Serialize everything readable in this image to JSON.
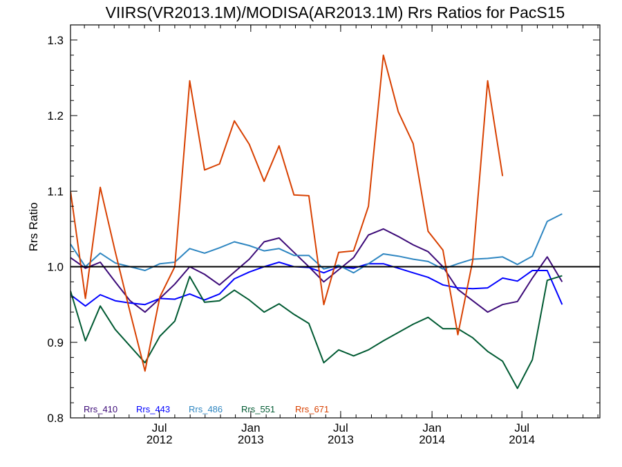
{
  "chart_data": {
    "type": "line",
    "title": "VIIRS(VR2013.1M)/MODISA(AR2013.1M)  Rrs Ratios for PacS15",
    "xlabel": "",
    "ylabel": "Rrs Ratio",
    "x_range": [
      "2012-01-04",
      "2014-12-05"
    ],
    "ylim": [
      0.8,
      1.32
    ],
    "y_ticks": [
      0.8,
      0.9,
      1.0,
      1.1,
      1.2,
      1.3
    ],
    "y_tick_labels": [
      "0.8",
      "0.9",
      "1.0",
      "1.1",
      "1.2",
      "1.3"
    ],
    "x_ticks": [
      {
        "date": "2012-07-01",
        "line1": "Jul",
        "line2": "2012"
      },
      {
        "date": "2013-01-01",
        "line1": "Jan",
        "line2": "2013"
      },
      {
        "date": "2013-07-01",
        "line1": "Jul",
        "line2": "2013"
      },
      {
        "date": "2014-01-01",
        "line1": "Jan",
        "line2": "2014"
      },
      {
        "date": "2014-07-01",
        "line1": "Jul",
        "line2": "2014"
      }
    ],
    "reference_line": 1.0,
    "grid": false,
    "legend_position": "bottom-left",
    "series": [
      {
        "name": "Rrs_410",
        "color": "#3c0a78",
        "points": [
          [
            "2012-01-04",
            1.012
          ],
          [
            "2012-02-03",
            0.998
          ],
          [
            "2012-03-04",
            1.006
          ],
          [
            "2012-04-03",
            0.98
          ],
          [
            "2012-05-03",
            0.955
          ],
          [
            "2012-06-02",
            0.94
          ],
          [
            "2012-07-02",
            0.958
          ],
          [
            "2012-08-01",
            0.977
          ],
          [
            "2012-08-31",
            1.0
          ],
          [
            "2012-09-30",
            0.99
          ],
          [
            "2012-10-30",
            0.976
          ],
          [
            "2012-11-29",
            0.993
          ],
          [
            "2012-12-29",
            1.01
          ],
          [
            "2013-01-28",
            1.033
          ],
          [
            "2013-02-27",
            1.038
          ],
          [
            "2013-03-29",
            1.019
          ],
          [
            "2013-04-28",
            1.0
          ],
          [
            "2013-05-28",
            0.98
          ],
          [
            "2013-06-27",
            0.996
          ],
          [
            "2013-07-27",
            1.012
          ],
          [
            "2013-08-26",
            1.042
          ],
          [
            "2013-09-25",
            1.05
          ],
          [
            "2013-10-25",
            1.04
          ],
          [
            "2013-11-24",
            1.029
          ],
          [
            "2013-12-24",
            1.02
          ],
          [
            "2014-01-23",
            1.0
          ],
          [
            "2014-02-22",
            0.97
          ],
          [
            "2014-03-24",
            0.955
          ],
          [
            "2014-04-23",
            0.94
          ],
          [
            "2014-05-23",
            0.95
          ],
          [
            "2014-06-22",
            0.954
          ],
          [
            "2014-07-22",
            0.985
          ],
          [
            "2014-08-21",
            1.013
          ],
          [
            "2014-09-20",
            0.98
          ]
        ]
      },
      {
        "name": "Rrs_443",
        "color": "#0000ff",
        "points": [
          [
            "2012-01-04",
            0.963
          ],
          [
            "2012-02-03",
            0.948
          ],
          [
            "2012-03-04",
            0.963
          ],
          [
            "2012-04-03",
            0.955
          ],
          [
            "2012-05-03",
            0.952
          ],
          [
            "2012-06-02",
            0.95
          ],
          [
            "2012-07-02",
            0.958
          ],
          [
            "2012-08-01",
            0.957
          ],
          [
            "2012-08-31",
            0.964
          ],
          [
            "2012-09-30",
            0.956
          ],
          [
            "2012-10-30",
            0.964
          ],
          [
            "2012-11-29",
            0.984
          ],
          [
            "2012-12-29",
            0.993
          ],
          [
            "2013-01-28",
            1.0
          ],
          [
            "2013-02-27",
            1.006
          ],
          [
            "2013-03-29",
            1.0
          ],
          [
            "2013-04-28",
            0.999
          ],
          [
            "2013-05-28",
            0.992
          ],
          [
            "2013-06-27",
            1.0
          ],
          [
            "2013-07-27",
            0.998
          ],
          [
            "2013-08-26",
            1.004
          ],
          [
            "2013-09-25",
            1.004
          ],
          [
            "2013-10-25",
            0.998
          ],
          [
            "2013-11-24",
            0.992
          ],
          [
            "2013-12-24",
            0.986
          ],
          [
            "2014-01-23",
            0.976
          ],
          [
            "2014-02-22",
            0.972
          ],
          [
            "2014-03-24",
            0.971
          ],
          [
            "2014-04-23",
            0.972
          ],
          [
            "2014-05-23",
            0.985
          ],
          [
            "2014-06-22",
            0.981
          ],
          [
            "2014-07-22",
            0.995
          ],
          [
            "2014-08-21",
            0.995
          ],
          [
            "2014-09-20",
            0.95
          ]
        ]
      },
      {
        "name": "Rrs_486",
        "color": "#2e86c1",
        "points": [
          [
            "2012-01-04",
            1.03
          ],
          [
            "2012-02-03",
            1.0
          ],
          [
            "2012-03-04",
            1.018
          ],
          [
            "2012-04-03",
            1.005
          ],
          [
            "2012-05-03",
            1.0
          ],
          [
            "2012-06-02",
            0.995
          ],
          [
            "2012-07-02",
            1.004
          ],
          [
            "2012-08-01",
            1.006
          ],
          [
            "2012-08-31",
            1.024
          ],
          [
            "2012-09-30",
            1.018
          ],
          [
            "2012-10-30",
            1.025
          ],
          [
            "2012-11-29",
            1.033
          ],
          [
            "2012-12-29",
            1.028
          ],
          [
            "2013-01-28",
            1.021
          ],
          [
            "2013-02-27",
            1.024
          ],
          [
            "2013-03-29",
            1.015
          ],
          [
            "2013-04-28",
            1.015
          ],
          [
            "2013-05-28",
            0.997
          ],
          [
            "2013-06-27",
            1.002
          ],
          [
            "2013-07-27",
            0.992
          ],
          [
            "2013-08-26",
            1.004
          ],
          [
            "2013-09-25",
            1.017
          ],
          [
            "2013-10-25",
            1.014
          ],
          [
            "2013-11-24",
            1.01
          ],
          [
            "2013-12-24",
            1.007
          ],
          [
            "2014-01-23",
            0.997
          ],
          [
            "2014-02-22",
            1.004
          ],
          [
            "2014-03-24",
            1.01
          ],
          [
            "2014-04-23",
            1.011
          ],
          [
            "2014-05-23",
            1.013
          ],
          [
            "2014-06-22",
            1.003
          ],
          [
            "2014-07-22",
            1.014
          ],
          [
            "2014-08-21",
            1.06
          ],
          [
            "2014-09-20",
            1.07
          ]
        ]
      },
      {
        "name": "Rrs_551",
        "color": "#005a32",
        "points": [
          [
            "2012-01-04",
            0.968
          ],
          [
            "2012-02-03",
            0.902
          ],
          [
            "2012-03-04",
            0.948
          ],
          [
            "2012-04-03",
            0.917
          ],
          [
            "2012-05-03",
            0.895
          ],
          [
            "2012-06-02",
            0.873
          ],
          [
            "2012-07-02",
            0.908
          ],
          [
            "2012-08-01",
            0.928
          ],
          [
            "2012-08-31",
            0.987
          ],
          [
            "2012-09-30",
            0.953
          ],
          [
            "2012-10-30",
            0.955
          ],
          [
            "2012-11-29",
            0.969
          ],
          [
            "2012-12-29",
            0.956
          ],
          [
            "2013-01-28",
            0.94
          ],
          [
            "2013-02-27",
            0.951
          ],
          [
            "2013-03-29",
            0.937
          ],
          [
            "2013-04-28",
            0.925
          ],
          [
            "2013-05-28",
            0.873
          ],
          [
            "2013-06-27",
            0.89
          ],
          [
            "2013-07-27",
            0.882
          ],
          [
            "2013-08-26",
            0.89
          ],
          [
            "2013-09-25",
            0.902
          ],
          [
            "2013-10-25",
            0.913
          ],
          [
            "2013-11-24",
            0.924
          ],
          [
            "2013-12-24",
            0.933
          ],
          [
            "2014-01-23",
            0.918
          ],
          [
            "2014-02-22",
            0.918
          ],
          [
            "2014-03-24",
            0.906
          ],
          [
            "2014-04-23",
            0.888
          ],
          [
            "2014-05-23",
            0.875
          ],
          [
            "2014-06-22",
            0.839
          ],
          [
            "2014-07-22",
            0.877
          ],
          [
            "2014-08-21",
            0.982
          ],
          [
            "2014-09-20",
            0.988
          ]
        ]
      },
      {
        "name": "Rrs_671",
        "color": "#d84000",
        "points": [
          [
            "2012-01-04",
            1.1
          ],
          [
            "2012-02-03",
            0.958
          ],
          [
            "2012-03-04",
            1.105
          ],
          [
            "2012-04-03",
            1.02
          ],
          [
            "2012-05-03",
            0.94
          ],
          [
            "2012-06-02",
            0.862
          ],
          [
            "2012-07-02",
            0.96
          ],
          [
            "2012-08-01",
            1.0
          ],
          [
            "2012-08-31",
            1.246
          ],
          [
            "2012-09-30",
            1.128
          ],
          [
            "2012-10-30",
            1.136
          ],
          [
            "2012-11-29",
            1.193
          ],
          [
            "2012-12-29",
            1.162
          ],
          [
            "2013-01-28",
            1.113
          ],
          [
            "2013-02-27",
            1.16
          ],
          [
            "2013-03-29",
            1.095
          ],
          [
            "2013-04-28",
            1.094
          ],
          [
            "2013-05-28",
            0.95
          ],
          [
            "2013-06-27",
            1.019
          ],
          [
            "2013-07-27",
            1.021
          ],
          [
            "2013-08-26",
            1.08
          ],
          [
            "2013-09-25",
            1.28
          ],
          [
            "2013-10-25",
            1.205
          ],
          [
            "2013-11-24",
            1.163
          ],
          [
            "2013-12-24",
            1.047
          ],
          [
            "2014-01-23",
            1.022
          ],
          [
            "2014-02-22",
            0.91
          ],
          [
            "2014-03-24",
            1.008
          ],
          [
            "2014-04-23",
            1.246
          ],
          [
            "2014-05-23",
            1.12
          ]
        ]
      }
    ]
  }
}
